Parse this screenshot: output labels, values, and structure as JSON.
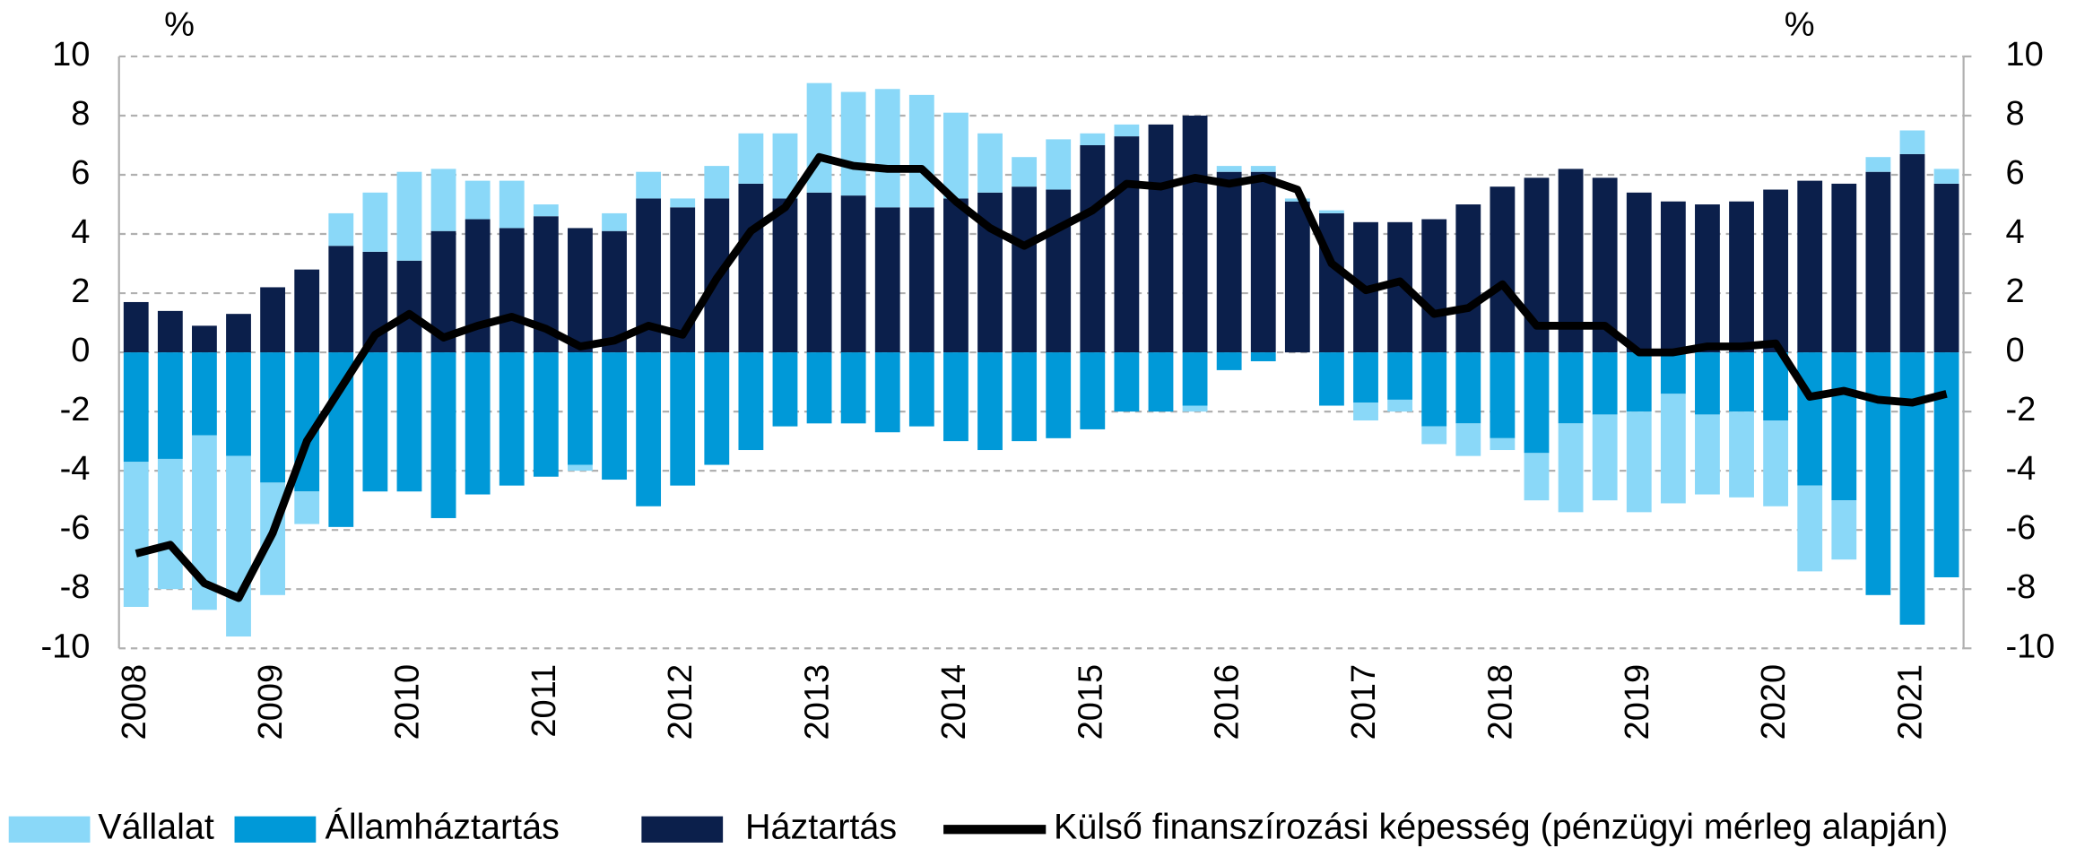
{
  "chart_data": {
    "type": "bar",
    "stacked": true,
    "y_label": "%",
    "y2_label": "%",
    "categories": [
      "2008",
      null,
      null,
      null,
      "2009",
      null,
      null,
      null,
      "2010",
      null,
      null,
      null,
      "2011",
      null,
      null,
      null,
      "2012",
      null,
      null,
      null,
      "2013",
      null,
      null,
      null,
      "2014",
      null,
      null,
      null,
      "2015",
      null,
      null,
      null,
      "2016",
      null,
      null,
      null,
      "2017",
      null,
      null,
      null,
      "2018",
      null,
      null,
      null,
      "2019",
      null,
      null,
      null,
      "2020",
      null,
      null,
      null,
      "2021",
      null
    ],
    "series": [
      {
        "name": "Vállalat",
        "type": "bar",
        "color": "#8ad8f8",
        "values": [
          -4.9,
          -4.4,
          -5.9,
          -6.1,
          -3.8,
          -1.1,
          1.1,
          2.0,
          3.0,
          2.1,
          1.3,
          1.6,
          0.4,
          -0.2,
          0.6,
          0.9,
          0.3,
          1.1,
          1.7,
          2.2,
          3.7,
          3.5,
          4.0,
          3.8,
          2.9,
          2.0,
          1.0,
          1.7,
          0.4,
          0.4,
          0,
          -0.2,
          0.2,
          0.2,
          0.1,
          0.1,
          -0.6,
          -0.4,
          -0.6,
          -1.1,
          -0.4,
          -1.6,
          -3.0,
          -2.9,
          -3.4,
          -3.7,
          -2.7,
          -2.9,
          -2.9,
          -2.9,
          -2.0,
          0.5,
          0.8,
          0.5
        ]
      },
      {
        "name": "Államháztartás",
        "type": "bar",
        "color": "#0099d8",
        "values": [
          -3.7,
          -3.6,
          -2.8,
          -3.5,
          -4.4,
          -4.7,
          -5.9,
          -4.7,
          -4.7,
          -5.6,
          -4.8,
          -4.5,
          -4.2,
          -3.8,
          -4.3,
          -5.2,
          -4.5,
          -3.8,
          -3.3,
          -2.5,
          -2.4,
          -2.4,
          -2.7,
          -2.5,
          -3.0,
          -3.3,
          -3.0,
          -2.9,
          -2.6,
          -2.0,
          -2.0,
          -1.8,
          -0.6,
          -0.3,
          0,
          -1.8,
          -1.7,
          -1.6,
          -2.5,
          -2.4,
          -2.9,
          -3.4,
          -2.4,
          -2.1,
          -2.0,
          -1.4,
          -2.1,
          -2.0,
          -2.3,
          -4.5,
          -5.0,
          -8.2,
          -9.2,
          -7.6
        ]
      },
      {
        "name": "Háztartás",
        "type": "bar",
        "color": "#0b1f4b",
        "values": [
          1.7,
          1.4,
          0.9,
          1.3,
          2.2,
          2.8,
          3.6,
          3.4,
          3.1,
          4.1,
          4.5,
          4.2,
          4.6,
          4.2,
          4.1,
          5.2,
          4.9,
          5.2,
          5.7,
          5.2,
          5.4,
          5.3,
          4.9,
          4.9,
          5.2,
          5.4,
          5.6,
          5.5,
          7.0,
          7.3,
          7.7,
          8.0,
          6.1,
          6.1,
          5.1,
          4.7,
          4.4,
          4.4,
          4.5,
          5.0,
          5.6,
          5.9,
          6.2,
          5.9,
          5.4,
          5.1,
          5.0,
          5.1,
          5.5,
          5.8,
          5.7,
          6.1,
          6.7,
          5.7
        ]
      },
      {
        "name": "Külső finanszírozási képesség (pénzügyi mérleg alapján)",
        "type": "line",
        "axis": "y2",
        "color": "#000000",
        "values": [
          -6.8,
          -6.5,
          -7.8,
          -8.3,
          -6.1,
          -3.0,
          -1.2,
          0.6,
          1.3,
          0.5,
          0.9,
          1.2,
          0.8,
          0.2,
          0.4,
          0.9,
          0.6,
          2.5,
          4.1,
          4.9,
          6.6,
          6.3,
          6.2,
          6.2,
          5.1,
          4.2,
          3.6,
          4.2,
          4.8,
          5.7,
          5.6,
          5.9,
          5.7,
          5.9,
          5.5,
          3.0,
          2.1,
          2.4,
          1.3,
          1.5,
          2.3,
          0.9,
          0.9,
          0.9,
          0.0,
          0.0,
          0.2,
          0.2,
          0.3,
          -1.5,
          -1.3,
          -1.6,
          -1.7,
          -1.4
        ]
      }
    ],
    "ylim": [
      -10,
      10
    ],
    "yticks": [
      -10,
      -8,
      -6,
      -4,
      -2,
      0,
      2,
      4,
      6,
      8,
      10
    ],
    "y2lim": [
      -10,
      10
    ],
    "y2ticks": [
      -10,
      -8,
      -6,
      -4,
      -2,
      0,
      2,
      4,
      6,
      8,
      10
    ],
    "grid": true,
    "legend": "bottom"
  }
}
